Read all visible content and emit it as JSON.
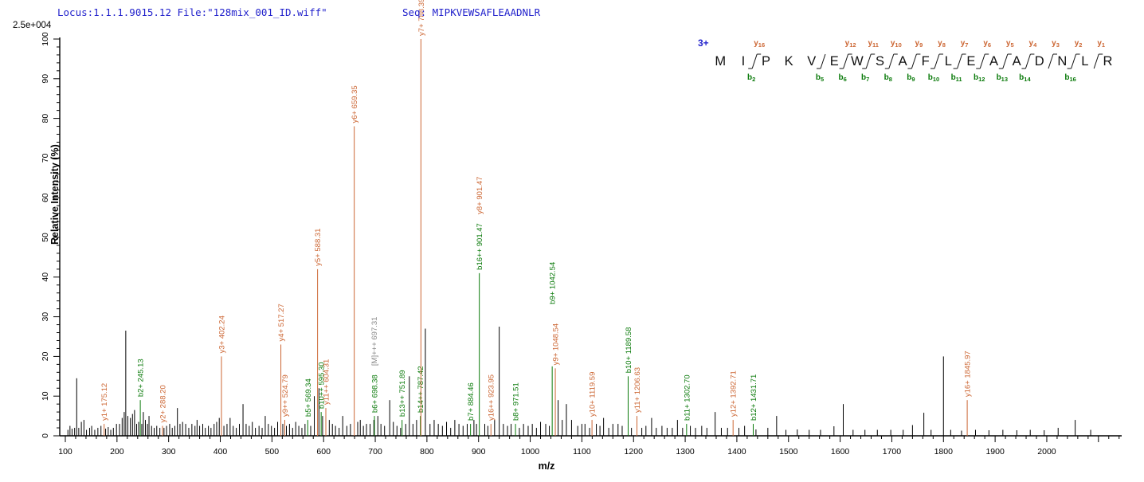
{
  "header": {
    "locus_file": "Locus:1.1.1.9015.12 File:\"128mix_001_ID.wiff\"",
    "seq_line": "Seq: MIPKVEWSAFLEAADNLR"
  },
  "colors": {
    "y_ion": "#cc6633",
    "b_ion": "#0a7a0a",
    "noise_peak": "#000000",
    "precursor_label": "#8a8a8a",
    "header_blue": "#2222cc",
    "axis": "#000000"
  },
  "sequence_map": {
    "charge_label": "3+",
    "residues": [
      "M",
      "I",
      "P",
      "K",
      "V",
      "E",
      "W",
      "S",
      "A",
      "F",
      "L",
      "E",
      "A",
      "A",
      "D",
      "N",
      "L",
      "R"
    ],
    "cuts": [
      {
        "after": 2,
        "y": "y16",
        "b": "b2"
      },
      {
        "after": 5,
        "b": "b5"
      },
      {
        "after": 6,
        "y": "y12",
        "b": "b6"
      },
      {
        "after": 7,
        "y": "y11",
        "b": "b7"
      },
      {
        "after": 8,
        "y": "y10",
        "b": "b8"
      },
      {
        "after": 9,
        "y": "y9",
        "b": "b9"
      },
      {
        "after": 10,
        "y": "y8",
        "b": "b10"
      },
      {
        "after": 11,
        "y": "y7",
        "b": "b11"
      },
      {
        "after": 12,
        "y": "y6",
        "b": "b12"
      },
      {
        "after": 13,
        "y": "y5",
        "b": "b13"
      },
      {
        "after": 14,
        "y": "y4",
        "b": "b14"
      },
      {
        "after": 15,
        "y": "y3"
      },
      {
        "after": 16,
        "y": "y2",
        "b": "b16"
      },
      {
        "after": 17,
        "y": "y1"
      }
    ]
  },
  "chart_data": {
    "type": "bar",
    "subtype": "ms2-fragment-spectrum",
    "title": "",
    "xlabel": "m/z",
    "ylabel": "Relative  Intensity (%)",
    "y_axis_scale_note": "2.5e+004",
    "xlim": [
      89,
      2145
    ],
    "ylim": [
      0,
      100
    ],
    "x_major_tick_labels": [
      100,
      200,
      300,
      400,
      500,
      600,
      700,
      800,
      900,
      1000,
      1100,
      1200,
      1300,
      1400,
      1500,
      1600,
      1700,
      1800,
      1900,
      2000
    ],
    "x_minor_tick_step": 20,
    "y_major_tick_labels": [
      0,
      10,
      20,
      30,
      40,
      50,
      60,
      70,
      80,
      90,
      100
    ],
    "y_minor_tick_step": 2,
    "grid": false,
    "legend": "none",
    "labeled_peaks": [
      {
        "label": "y1+ 175.12",
        "mz": 175.12,
        "intensity_pct": 3,
        "series": "y"
      },
      {
        "label": "b2+ 245.13",
        "mz": 245.13,
        "intensity_pct": 9,
        "series": "b"
      },
      {
        "label": "y2+ 288.20",
        "mz": 288.2,
        "intensity_pct": 2.5,
        "series": "y"
      },
      {
        "label": "y3+ 402.24",
        "mz": 402.24,
        "intensity_pct": 20,
        "series": "y"
      },
      {
        "label": "y4+ 517.27",
        "mz": 517.27,
        "intensity_pct": 23,
        "series": "y"
      },
      {
        "label": "y9++ 524.79",
        "mz": 524.79,
        "intensity_pct": 4,
        "series": "y"
      },
      {
        "label": "b5+ 569.34",
        "mz": 569.34,
        "intensity_pct": 4,
        "series": "b"
      },
      {
        "label": "y5+ 588.31",
        "mz": 588.31,
        "intensity_pct": 42,
        "series": "y"
      },
      {
        "label": "b10++ 595.30",
        "mz": 595.3,
        "intensity_pct": 6,
        "series": "b"
      },
      {
        "label": "y11++ 604.31",
        "mz": 604.31,
        "intensity_pct": 7,
        "series": "y"
      },
      {
        "label": "y6+ 659.35",
        "mz": 659.35,
        "intensity_pct": 78,
        "series": "y"
      },
      {
        "label": "[M]+++ 697.31",
        "mz": 697.31,
        "intensity_pct": 4,
        "series": "precursor",
        "label_raise": 64
      },
      {
        "label": "b6+ 698.38",
        "mz": 698.38,
        "intensity_pct": 5,
        "series": "b"
      },
      {
        "label": "b13++ 751.89",
        "mz": 751.89,
        "intensity_pct": 4,
        "series": "b"
      },
      {
        "label": "b14++ 787.42",
        "mz": 787.42,
        "intensity_pct": 5,
        "series": "b"
      },
      {
        "label": "y7+ 788.39",
        "mz": 788.39,
        "intensity_pct": 100,
        "series": "y"
      },
      {
        "label": "b7+ 884.46",
        "mz": 884.46,
        "intensity_pct": 3,
        "series": "b"
      },
      {
        "label": "b16++ 901.47",
        "mz": 901.47,
        "intensity_pct": 41,
        "series": "b",
        "extra_label": {
          "label": "y8+ 901.47",
          "series": "y",
          "raise": 70
        }
      },
      {
        "label": "y16++ 923.95",
        "mz": 923.95,
        "intensity_pct": 3,
        "series": "y"
      },
      {
        "label": "b8+ 971.51",
        "mz": 971.51,
        "intensity_pct": 3,
        "series": "b"
      },
      {
        "label": "b9+ 1042.54",
        "mz": 1042.54,
        "intensity_pct": 17.5,
        "series": "b",
        "label_raise": 74
      },
      {
        "label": "y9+ 1048.54",
        "mz": 1048.54,
        "intensity_pct": 17,
        "series": "y"
      },
      {
        "label": "y10+ 1119.59",
        "mz": 1119.59,
        "intensity_pct": 4,
        "series": "y"
      },
      {
        "label": "b10+ 1189.58",
        "mz": 1189.58,
        "intensity_pct": 15,
        "series": "b"
      },
      {
        "label": "y11+ 1206.63",
        "mz": 1206.63,
        "intensity_pct": 5,
        "series": "y"
      },
      {
        "label": "b11+ 1302.70",
        "mz": 1302.7,
        "intensity_pct": 3,
        "series": "b"
      },
      {
        "label": "y12+ 1392.71",
        "mz": 1392.71,
        "intensity_pct": 4,
        "series": "y"
      },
      {
        "label": "b12+ 1431.71",
        "mz": 1431.71,
        "intensity_pct": 3,
        "series": "b"
      },
      {
        "label": "y16+ 1845.97",
        "mz": 1845.97,
        "intensity_pct": 9,
        "series": "y"
      }
    ],
    "noise_peaks": [
      [
        105,
        1.5
      ],
      [
        109,
        2.5
      ],
      [
        113,
        1.8
      ],
      [
        118,
        2
      ],
      [
        122,
        14.5
      ],
      [
        126,
        2
      ],
      [
        131,
        3.5
      ],
      [
        136,
        4
      ],
      [
        141,
        1.5
      ],
      [
        147,
        2
      ],
      [
        151,
        2.5
      ],
      [
        157,
        1.5
      ],
      [
        163,
        2
      ],
      [
        169,
        2.5
      ],
      [
        178,
        1.8
      ],
      [
        183,
        2.2
      ],
      [
        188,
        1.5
      ],
      [
        193,
        2
      ],
      [
        199,
        3
      ],
      [
        205,
        3
      ],
      [
        210,
        4.5
      ],
      [
        214,
        6
      ],
      [
        217,
        26.5
      ],
      [
        221,
        5
      ],
      [
        226,
        4.5
      ],
      [
        230,
        5.5
      ],
      [
        234,
        6.5
      ],
      [
        238,
        3
      ],
      [
        242,
        3.5
      ],
      [
        248,
        3
      ],
      [
        251,
        6
      ],
      [
        255,
        4
      ],
      [
        259,
        3
      ],
      [
        262,
        5
      ],
      [
        267,
        2.5
      ],
      [
        272,
        2
      ],
      [
        277,
        2.5
      ],
      [
        283,
        2
      ],
      [
        291,
        2
      ],
      [
        296,
        2.5
      ],
      [
        302,
        3
      ],
      [
        307,
        2
      ],
      [
        312,
        2.5
      ],
      [
        317,
        7
      ],
      [
        322,
        3
      ],
      [
        327,
        3.5
      ],
      [
        333,
        3
      ],
      [
        339,
        2
      ],
      [
        345,
        3
      ],
      [
        351,
        2.5
      ],
      [
        355,
        4
      ],
      [
        360,
        2.5
      ],
      [
        366,
        3
      ],
      [
        371,
        2
      ],
      [
        377,
        2.5
      ],
      [
        382,
        2
      ],
      [
        388,
        3
      ],
      [
        393,
        3.5
      ],
      [
        398,
        4.5
      ],
      [
        407,
        2.5
      ],
      [
        413,
        3
      ],
      [
        419,
        4.5
      ],
      [
        425,
        2.5
      ],
      [
        431,
        2
      ],
      [
        437,
        3
      ],
      [
        444,
        8
      ],
      [
        450,
        3
      ],
      [
        456,
        2.5
      ],
      [
        462,
        3.5
      ],
      [
        468,
        2
      ],
      [
        475,
        2.5
      ],
      [
        481,
        2
      ],
      [
        487,
        5
      ],
      [
        493,
        3
      ],
      [
        499,
        2.5
      ],
      [
        505,
        2
      ],
      [
        511,
        3.5
      ],
      [
        521,
        3
      ],
      [
        528,
        2.5
      ],
      [
        534,
        3
      ],
      [
        540,
        2
      ],
      [
        546,
        3.5
      ],
      [
        552,
        2.5
      ],
      [
        558,
        2
      ],
      [
        564,
        3
      ],
      [
        575,
        2.5
      ],
      [
        582,
        10
      ],
      [
        591,
        12
      ],
      [
        598,
        5
      ],
      [
        611,
        4
      ],
      [
        617,
        3
      ],
      [
        623,
        2.5
      ],
      [
        630,
        2
      ],
      [
        637,
        5
      ],
      [
        645,
        2.5
      ],
      [
        652,
        3
      ],
      [
        666,
        3.5
      ],
      [
        671,
        4
      ],
      [
        677,
        2.5
      ],
      [
        683,
        3
      ],
      [
        690,
        3
      ],
      [
        705,
        5
      ],
      [
        711,
        3
      ],
      [
        718,
        2.5
      ],
      [
        728,
        9
      ],
      [
        735,
        3.5
      ],
      [
        742,
        2.5
      ],
      [
        749,
        2
      ],
      [
        759,
        3
      ],
      [
        766,
        15
      ],
      [
        773,
        3
      ],
      [
        780,
        4
      ],
      [
        797,
        27
      ],
      [
        806,
        3
      ],
      [
        814,
        4
      ],
      [
        822,
        3
      ],
      [
        830,
        2.5
      ],
      [
        838,
        3.5
      ],
      [
        846,
        2
      ],
      [
        854,
        4
      ],
      [
        862,
        3
      ],
      [
        870,
        2.5
      ],
      [
        878,
        3
      ],
      [
        891,
        4
      ],
      [
        896,
        3
      ],
      [
        912,
        3
      ],
      [
        918,
        2.5
      ],
      [
        931,
        4
      ],
      [
        940,
        27.5
      ],
      [
        948,
        3
      ],
      [
        956,
        2.5
      ],
      [
        963,
        3
      ],
      [
        979,
        2
      ],
      [
        987,
        3
      ],
      [
        996,
        2.5
      ],
      [
        1004,
        3
      ],
      [
        1012,
        2
      ],
      [
        1020,
        3.5
      ],
      [
        1030,
        3
      ],
      [
        1037,
        2.5
      ],
      [
        1054,
        9
      ],
      [
        1062,
        4
      ],
      [
        1070,
        8
      ],
      [
        1080,
        4
      ],
      [
        1092,
        2.5
      ],
      [
        1100,
        3
      ],
      [
        1106,
        3
      ],
      [
        1115,
        2
      ],
      [
        1128,
        3
      ],
      [
        1135,
        2.5
      ],
      [
        1142,
        4.5
      ],
      [
        1152,
        2
      ],
      [
        1160,
        3
      ],
      [
        1170,
        3
      ],
      [
        1178,
        2.5
      ],
      [
        1196,
        2
      ],
      [
        1216,
        2
      ],
      [
        1224,
        2.5
      ],
      [
        1235,
        4.5
      ],
      [
        1244,
        2
      ],
      [
        1255,
        2.5
      ],
      [
        1265,
        2
      ],
      [
        1275,
        2
      ],
      [
        1285,
        4
      ],
      [
        1295,
        2
      ],
      [
        1310,
        2.5
      ],
      [
        1320,
        2
      ],
      [
        1332,
        2.5
      ],
      [
        1342,
        2
      ],
      [
        1358,
        6
      ],
      [
        1370,
        2
      ],
      [
        1382,
        2
      ],
      [
        1404,
        2
      ],
      [
        1415,
        2.5
      ],
      [
        1437,
        1.6
      ],
      [
        1460,
        2
      ],
      [
        1477,
        5
      ],
      [
        1495,
        1.5
      ],
      [
        1517,
        1.6
      ],
      [
        1540,
        1.5
      ],
      [
        1562,
        1.5
      ],
      [
        1588,
        2.4
      ],
      [
        1606,
        8
      ],
      [
        1625,
        1.5
      ],
      [
        1648,
        1.5
      ],
      [
        1672,
        1.5
      ],
      [
        1698,
        1.5
      ],
      [
        1722,
        1.5
      ],
      [
        1740,
        2.7
      ],
      [
        1762,
        5.8
      ],
      [
        1776,
        1.5
      ],
      [
        1800,
        20
      ],
      [
        1814,
        1.5
      ],
      [
        1835,
        1.3
      ],
      [
        1862,
        1.5
      ],
      [
        1888,
        1.4
      ],
      [
        1915,
        1.5
      ],
      [
        1942,
        1.4
      ],
      [
        1968,
        1.5
      ],
      [
        1995,
        1.4
      ],
      [
        2022,
        2
      ],
      [
        2055,
        4
      ],
      [
        2085,
        1.5
      ]
    ]
  }
}
